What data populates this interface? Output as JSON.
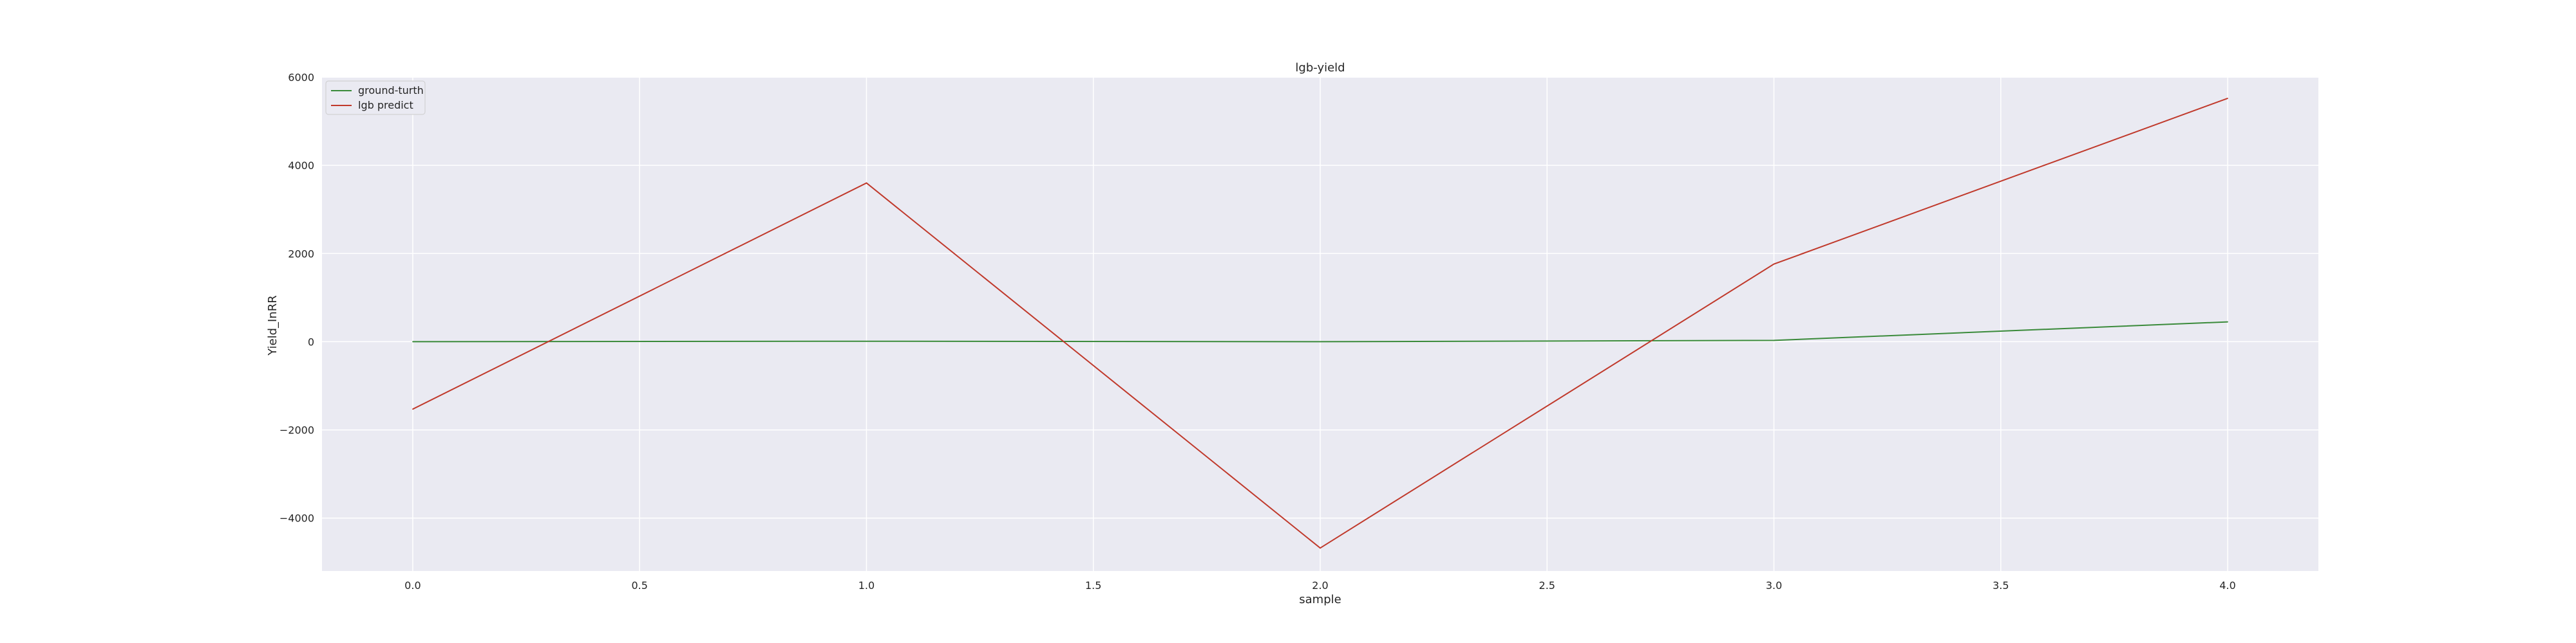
{
  "chart_data": {
    "type": "line",
    "title": "lgb-yield",
    "xlabel": "sample",
    "ylabel": "Yield_InRR",
    "x": [
      0,
      1,
      2,
      3,
      4
    ],
    "xlim": [
      -0.2,
      4.2
    ],
    "ylim": [
      -5200,
      6000
    ],
    "x_ticks": [
      "0.0",
      "0.5",
      "1.0",
      "1.5",
      "2.0",
      "2.5",
      "3.0",
      "3.5",
      "4.0"
    ],
    "y_ticks": [
      "−4000",
      "−2000",
      "0",
      "2000",
      "4000",
      "6000"
    ],
    "grid": true,
    "legend_position": "upper-left",
    "background_color": "#eaeaf2",
    "series": [
      {
        "name": "ground-turth",
        "color": "#3a8a3a",
        "values": [
          0,
          10,
          0,
          30,
          450
        ]
      },
      {
        "name": "lgb predict",
        "color": "#c0392b",
        "values": [
          -1530,
          3600,
          -4680,
          1760,
          5520
        ]
      }
    ]
  }
}
